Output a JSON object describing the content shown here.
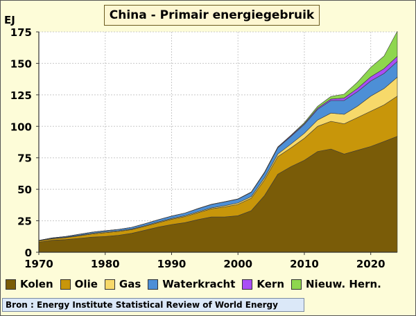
{
  "chart_data": {
    "type": "area",
    "stacked": true,
    "title": "China - Primair energiegebruik",
    "ylabel": "EJ",
    "xlim": [
      1970,
      2024
    ],
    "ylim": [
      0,
      175
    ],
    "x_ticks": [
      "1970",
      "1980",
      "1990",
      "2000",
      "2010",
      "2020"
    ],
    "y_ticks": [
      "0",
      "25",
      "50",
      "75",
      "100",
      "125",
      "150",
      "175"
    ],
    "grid": true,
    "legend_position": "bottom",
    "x": [
      1970,
      1972,
      1974,
      1976,
      1978,
      1980,
      1982,
      1984,
      1986,
      1988,
      1990,
      1992,
      1994,
      1996,
      1998,
      2000,
      2002,
      2004,
      2006,
      2008,
      2010,
      2012,
      2014,
      2016,
      2018,
      2020,
      2022,
      2024
    ],
    "series": [
      {
        "name": "Kolen",
        "color": "#7a5c08",
        "values": [
          8,
          9.5,
          10,
          11,
          12,
          12.5,
          13.5,
          15,
          17.5,
          20,
          22,
          23.5,
          26,
          28,
          28,
          29,
          33,
          45,
          62,
          68,
          73,
          80,
          82,
          78,
          81,
          84,
          88,
          92
        ]
      },
      {
        "name": "Olie",
        "color": "#c8960a",
        "values": [
          1,
          1.2,
          1.6,
          2,
          2.5,
          3,
          3,
          3,
          3.2,
          3.5,
          4.2,
          4.8,
          5.5,
          6.5,
          8,
          9,
          10,
          12.5,
          14,
          15,
          17.5,
          20,
          22,
          24,
          26,
          28,
          29,
          32
        ]
      },
      {
        "name": "Gas",
        "color": "#f7d96a",
        "values": [
          0.1,
          0.2,
          0.3,
          0.4,
          0.5,
          0.6,
          0.5,
          0.5,
          0.5,
          0.6,
          0.6,
          0.7,
          0.7,
          0.8,
          1,
          1.1,
          1.2,
          1.6,
          2,
          3,
          4,
          5,
          6.5,
          7.5,
          9,
          12,
          13,
          15
        ]
      },
      {
        "name": "Waterkracht",
        "color": "#4d8fd6",
        "values": [
          0.3,
          0.5,
          0.6,
          0.8,
          0.9,
          1,
          1.1,
          1.3,
          1.5,
          1.7,
          1.9,
          2.1,
          2.4,
          2.6,
          3,
          3.1,
          3.4,
          4,
          5,
          6,
          7,
          8.5,
          10,
          11,
          11.5,
          12,
          12,
          12.5
        ]
      },
      {
        "name": "Kern",
        "color": "#a94ef5",
        "values": [
          0,
          0,
          0,
          0,
          0,
          0,
          0,
          0,
          0,
          0,
          0,
          0,
          0.2,
          0.2,
          0.2,
          0.2,
          0.3,
          0.4,
          0.5,
          0.6,
          0.7,
          0.9,
          1.2,
          2,
          2.6,
          3.3,
          3.8,
          4
        ]
      },
      {
        "name": "Nieuw. Hern.",
        "color": "#8ed64e",
        "values": [
          0,
          0,
          0,
          0,
          0,
          0,
          0,
          0,
          0,
          0,
          0,
          0,
          0,
          0,
          0,
          0,
          0,
          0.1,
          0.2,
          0.4,
          0.8,
          1.5,
          2,
          3,
          5,
          7.5,
          10,
          20
        ]
      }
    ]
  },
  "source": "Bron : Energy Institute Statistical Review of World Energy"
}
